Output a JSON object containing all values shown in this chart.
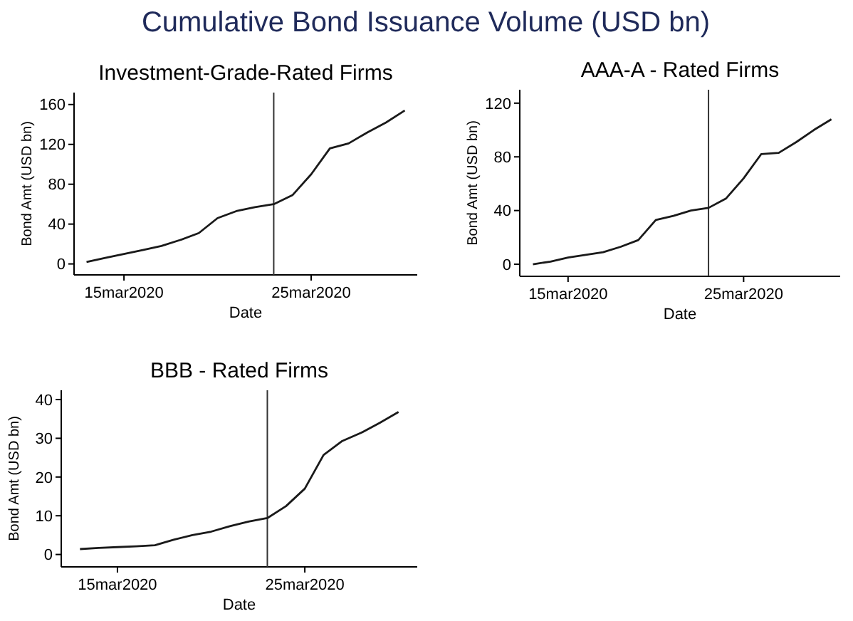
{
  "chart_data": [
    {
      "type": "line",
      "title": "Cumulative Bond Issuance Volume (USD bn)",
      "subtitle": "Investment-Grade-Rated Firms",
      "xlabel": "Date",
      "ylabel": "Bond Amt (USD bn)",
      "x": [
        "2020-03-13",
        "2020-03-14",
        "2020-03-15",
        "2020-03-16",
        "2020-03-17",
        "2020-03-18",
        "2020-03-19",
        "2020-03-20",
        "2020-03-21",
        "2020-03-22",
        "2020-03-23",
        "2020-03-24",
        "2020-03-25",
        "2020-03-26",
        "2020-03-27",
        "2020-03-28",
        "2020-03-29",
        "2020-03-30"
      ],
      "series": [
        {
          "color": "#1a1a1a",
          "values": [
            2,
            6,
            10,
            14,
            18,
            24,
            31,
            46,
            53,
            57,
            60,
            69,
            90,
            116,
            121,
            132,
            142,
            154
          ]
        }
      ],
      "xlim": [
        "2020-03-12T08:00",
        "2020-03-30T16:00"
      ],
      "xticks": [
        {
          "value": "2020-03-15",
          "label": "15mar2020"
        },
        {
          "value": "2020-03-25",
          "label": "25mar2020"
        }
      ],
      "ylim": [
        -11,
        172
      ],
      "yticks": [
        0,
        40,
        80,
        120,
        160
      ],
      "ref_lines": [
        {
          "axis": "x",
          "value": "2020-03-23",
          "color": "#333333"
        }
      ],
      "grid": false,
      "line_style": "solid",
      "marker": "none"
    },
    {
      "type": "line",
      "subtitle": "AAA-A - Rated Firms",
      "xlabel": "Date",
      "ylabel": "Bond Amt (USD bn)",
      "x": [
        "2020-03-13",
        "2020-03-14",
        "2020-03-15",
        "2020-03-16",
        "2020-03-17",
        "2020-03-18",
        "2020-03-19",
        "2020-03-20",
        "2020-03-21",
        "2020-03-22",
        "2020-03-23",
        "2020-03-24",
        "2020-03-25",
        "2020-03-26",
        "2020-03-27",
        "2020-03-28",
        "2020-03-29",
        "2020-03-30"
      ],
      "series": [
        {
          "color": "#1a1a1a",
          "values": [
            0,
            2,
            5,
            7,
            9,
            13,
            18,
            33,
            36,
            40,
            42,
            49,
            64,
            82,
            83,
            91,
            100,
            108
          ]
        }
      ],
      "xlim": [
        "2020-03-12T06:00",
        "2020-03-30T12:00"
      ],
      "xticks": [
        {
          "value": "2020-03-15",
          "label": "15mar2020"
        },
        {
          "value": "2020-03-25",
          "label": "25mar2020"
        }
      ],
      "ylim": [
        -9,
        130
      ],
      "yticks": [
        0,
        40,
        80,
        120
      ],
      "ref_lines": [
        {
          "axis": "x",
          "value": "2020-03-23",
          "color": "#333333"
        }
      ],
      "grid": false,
      "line_style": "solid",
      "marker": "none"
    },
    {
      "type": "line",
      "subtitle": "BBB - Rated Firms",
      "xlabel": "Date",
      "ylabel": "Bond Amt (USD bn)",
      "x": [
        "2020-03-13",
        "2020-03-14",
        "2020-03-15",
        "2020-03-16",
        "2020-03-17",
        "2020-03-18",
        "2020-03-19",
        "2020-03-20",
        "2020-03-21",
        "2020-03-22",
        "2020-03-23",
        "2020-03-24",
        "2020-03-25",
        "2020-03-26",
        "2020-03-27",
        "2020-03-28",
        "2020-03-29",
        "2020-03-30"
      ],
      "series": [
        {
          "color": "#1a1a1a",
          "values": [
            1.4,
            1.7,
            1.9,
            2.1,
            2.4,
            3.8,
            5,
            5.9,
            7.3,
            8.5,
            9.4,
            12.5,
            17,
            25.7,
            29.3,
            31.4,
            34,
            36.8
          ]
        }
      ],
      "xlim": [
        "2020-03-12T00:00",
        "2020-03-31T00:00"
      ],
      "xticks": [
        {
          "value": "2020-03-15",
          "label": "15mar2020"
        },
        {
          "value": "2020-03-25",
          "label": "25mar2020"
        }
      ],
      "ylim": [
        -3.2,
        42.4
      ],
      "yticks": [
        0,
        10,
        20,
        30,
        40
      ],
      "ref_lines": [
        {
          "axis": "x",
          "value": "2020-03-23",
          "color": "#333333"
        }
      ],
      "grid": false,
      "line_style": "solid",
      "marker": "none"
    }
  ]
}
